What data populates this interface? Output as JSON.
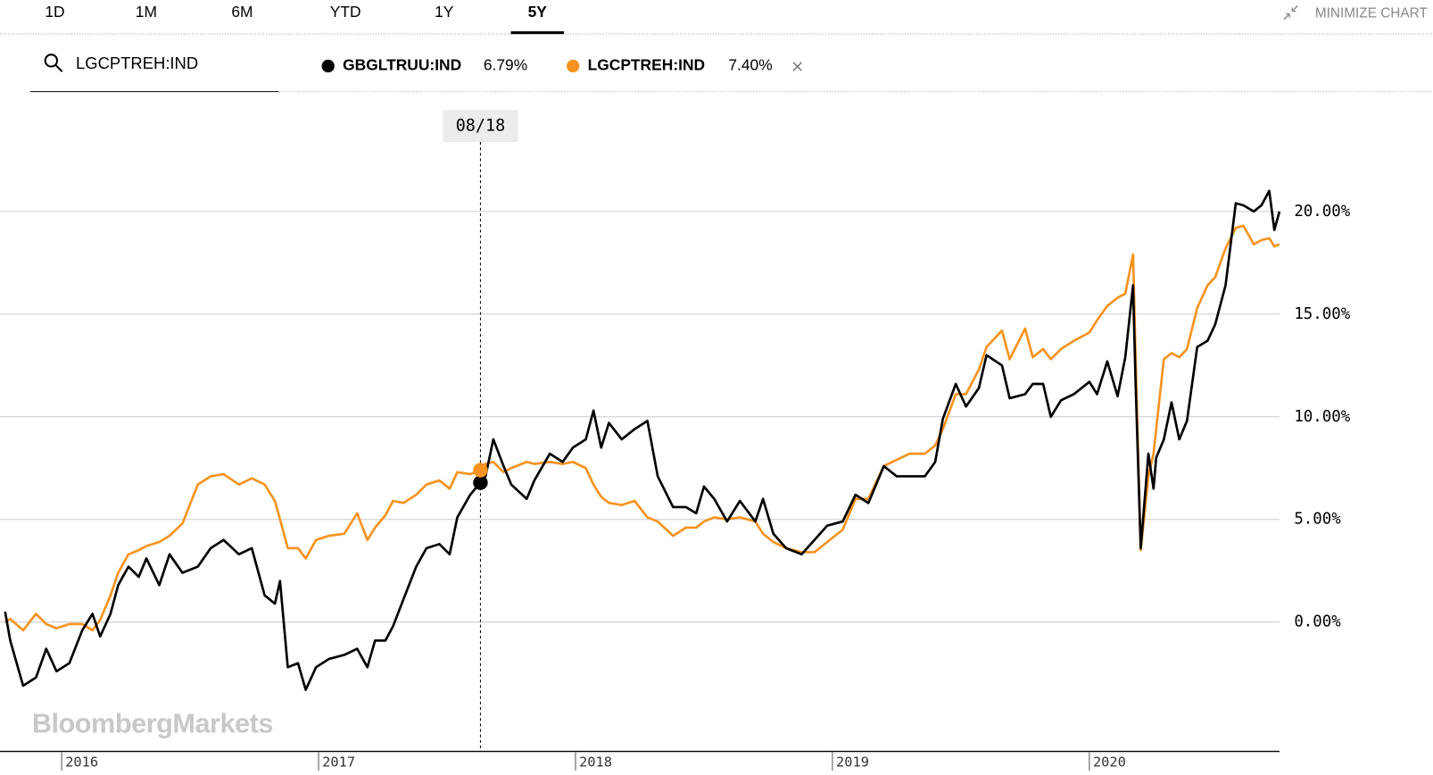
{
  "tabs": [
    "1D",
    "1M",
    "6M",
    "YTD",
    "1Y",
    "5Y"
  ],
  "active_tab": 5,
  "minimize": "MINIMIZE CHART",
  "search": "LGCPTREH:IND",
  "watermark": "BloombergMarkets",
  "chart_data": {
    "type": "line",
    "x": [
      2015.78,
      2015.8,
      2015.85,
      2015.9,
      2015.94,
      2015.98,
      2016.03,
      2016.08,
      2016.12,
      2016.15,
      2016.19,
      2016.22,
      2016.26,
      2016.3,
      2016.33,
      2016.38,
      2016.42,
      2016.47,
      2016.53,
      2016.58,
      2016.63,
      2016.69,
      2016.74,
      2016.79,
      2016.83,
      2016.85,
      2016.88,
      2016.92,
      2016.95,
      2016.99,
      2017.04,
      2017.1,
      2017.15,
      2017.19,
      2017.22,
      2017.26,
      2017.29,
      2017.33,
      2017.38,
      2017.42,
      2017.47,
      2017.51,
      2017.54,
      2017.59,
      2017.63,
      2017.65,
      2017.68,
      2017.72,
      2017.75,
      2017.81,
      2017.84,
      2017.9,
      2017.95,
      2017.99,
      2018.04,
      2018.07,
      2018.1,
      2018.13,
      2018.18,
      2018.23,
      2018.28,
      2018.32,
      2018.38,
      2018.43,
      2018.47,
      2018.5,
      2018.54,
      2018.59,
      2018.64,
      2018.7,
      2018.73,
      2018.77,
      2018.82,
      2018.88,
      2018.93,
      2018.98,
      2019.04,
      2019.09,
      2019.14,
      2019.2,
      2019.25,
      2019.3,
      2019.36,
      2019.4,
      2019.43,
      2019.48,
      2019.52,
      2019.57,
      2019.6,
      2019.66,
      2019.69,
      2019.75,
      2019.78,
      2019.82,
      2019.85,
      2019.89,
      2019.94,
      2020.0,
      2020.03,
      2020.07,
      2020.11,
      2020.14,
      2020.17,
      2020.18,
      2020.2,
      2020.23,
      2020.25,
      2020.26,
      2020.29,
      2020.32,
      2020.35,
      2020.38,
      2020.42,
      2020.46,
      2020.49,
      2020.53,
      2020.57,
      2020.6,
      2020.64,
      2020.67,
      2020.7,
      2020.72,
      2020.74
    ],
    "series": [
      {
        "name": "GBGLTRUU:IND",
        "color": "#000000",
        "values": [
          0.5,
          -0.9,
          -3.1,
          -2.7,
          -1.3,
          -2.4,
          -2.0,
          -0.4,
          0.4,
          -0.7,
          0.4,
          1.8,
          2.7,
          2.2,
          3.1,
          1.8,
          3.3,
          2.4,
          2.7,
          3.6,
          4.0,
          3.3,
          3.6,
          1.3,
          0.9,
          2.0,
          -2.2,
          -2.0,
          -3.3,
          -2.2,
          -1.8,
          -1.6,
          -1.3,
          -2.2,
          -0.9,
          -0.9,
          -0.2,
          1.1,
          2.7,
          3.6,
          3.8,
          3.3,
          5.1,
          6.2,
          6.79,
          7.1,
          8.9,
          7.6,
          6.7,
          6.0,
          6.9,
          8.2,
          7.8,
          8.5,
          8.9,
          10.3,
          8.5,
          9.7,
          8.9,
          9.4,
          9.8,
          7.1,
          5.6,
          5.6,
          5.3,
          6.6,
          6.0,
          4.9,
          5.9,
          4.9,
          6.0,
          4.3,
          3.6,
          3.3,
          4.0,
          4.7,
          4.9,
          6.2,
          5.8,
          7.6,
          7.1,
          7.1,
          7.1,
          7.8,
          9.9,
          11.6,
          10.5,
          11.4,
          13.0,
          12.5,
          10.9,
          11.1,
          11.6,
          11.6,
          10.0,
          10.8,
          11.1,
          11.7,
          11.1,
          12.7,
          11.0,
          12.9,
          16.4,
          11.6,
          3.6,
          8.2,
          6.5,
          8.0,
          8.9,
          10.7,
          8.9,
          9.8,
          13.4,
          13.7,
          14.5,
          16.4,
          20.4,
          20.3,
          20.0,
          20.3,
          21.0,
          19.1,
          20.0
        ]
      },
      {
        "name": "LGCPTREH:IND",
        "color": "#f7931e",
        "values": [
          0,
          0.15,
          -0.4,
          0.4,
          -0.1,
          -0.3,
          -0.1,
          -0.1,
          -0.4,
          0.1,
          1.3,
          2.4,
          3.3,
          3.5,
          3.7,
          3.9,
          4.2,
          4.8,
          6.7,
          7.1,
          7.2,
          6.7,
          7.0,
          6.7,
          5.9,
          5.0,
          3.6,
          3.6,
          3.1,
          4.0,
          4.2,
          4.3,
          5.3,
          4.0,
          4.6,
          5.2,
          5.9,
          5.8,
          6.2,
          6.7,
          6.9,
          6.5,
          7.3,
          7.2,
          7.4,
          7.7,
          7.8,
          7.3,
          7.5,
          7.8,
          7.7,
          7.8,
          7.7,
          7.8,
          7.5,
          6.7,
          6.1,
          5.8,
          5.7,
          5.9,
          5.1,
          4.9,
          4.2,
          4.6,
          4.6,
          4.9,
          5.1,
          5.0,
          5.1,
          4.9,
          4.3,
          3.9,
          3.6,
          3.4,
          3.4,
          3.9,
          4.5,
          6.0,
          6.0,
          7.6,
          7.9,
          8.2,
          8.2,
          8.6,
          9.4,
          11.1,
          11.1,
          12.3,
          13.4,
          14.2,
          12.8,
          14.3,
          12.9,
          13.3,
          12.8,
          13.3,
          13.7,
          14.1,
          14.7,
          15.4,
          15.8,
          16.0,
          17.9,
          12.9,
          3.5,
          7.1,
          8.2,
          9.4,
          12.8,
          13.1,
          12.9,
          13.3,
          15.3,
          16.4,
          16.8,
          18.2,
          19.2,
          19.3,
          18.4,
          18.6,
          18.7,
          18.3,
          18.4
        ]
      }
    ],
    "crosshair": {
      "label": "08/18",
      "x": 2017.63,
      "values": [
        6.79,
        7.4
      ],
      "value_labels": [
        "6.79%",
        "7.40%"
      ]
    },
    "xlim": [
      2015.76,
      2020.74
    ],
    "xticks": [
      2016,
      2017,
      2018,
      2019,
      2020
    ],
    "ylim": [
      -6.3,
      25
    ],
    "yticks": [
      {
        "value": 0,
        "label": "0.00%"
      },
      {
        "value": 5,
        "label": "5.00%"
      },
      {
        "value": 10,
        "label": "10.00%"
      },
      {
        "value": 15,
        "label": "15.00%"
      },
      {
        "value": 20,
        "label": "20.00%"
      }
    ],
    "grid": true
  }
}
